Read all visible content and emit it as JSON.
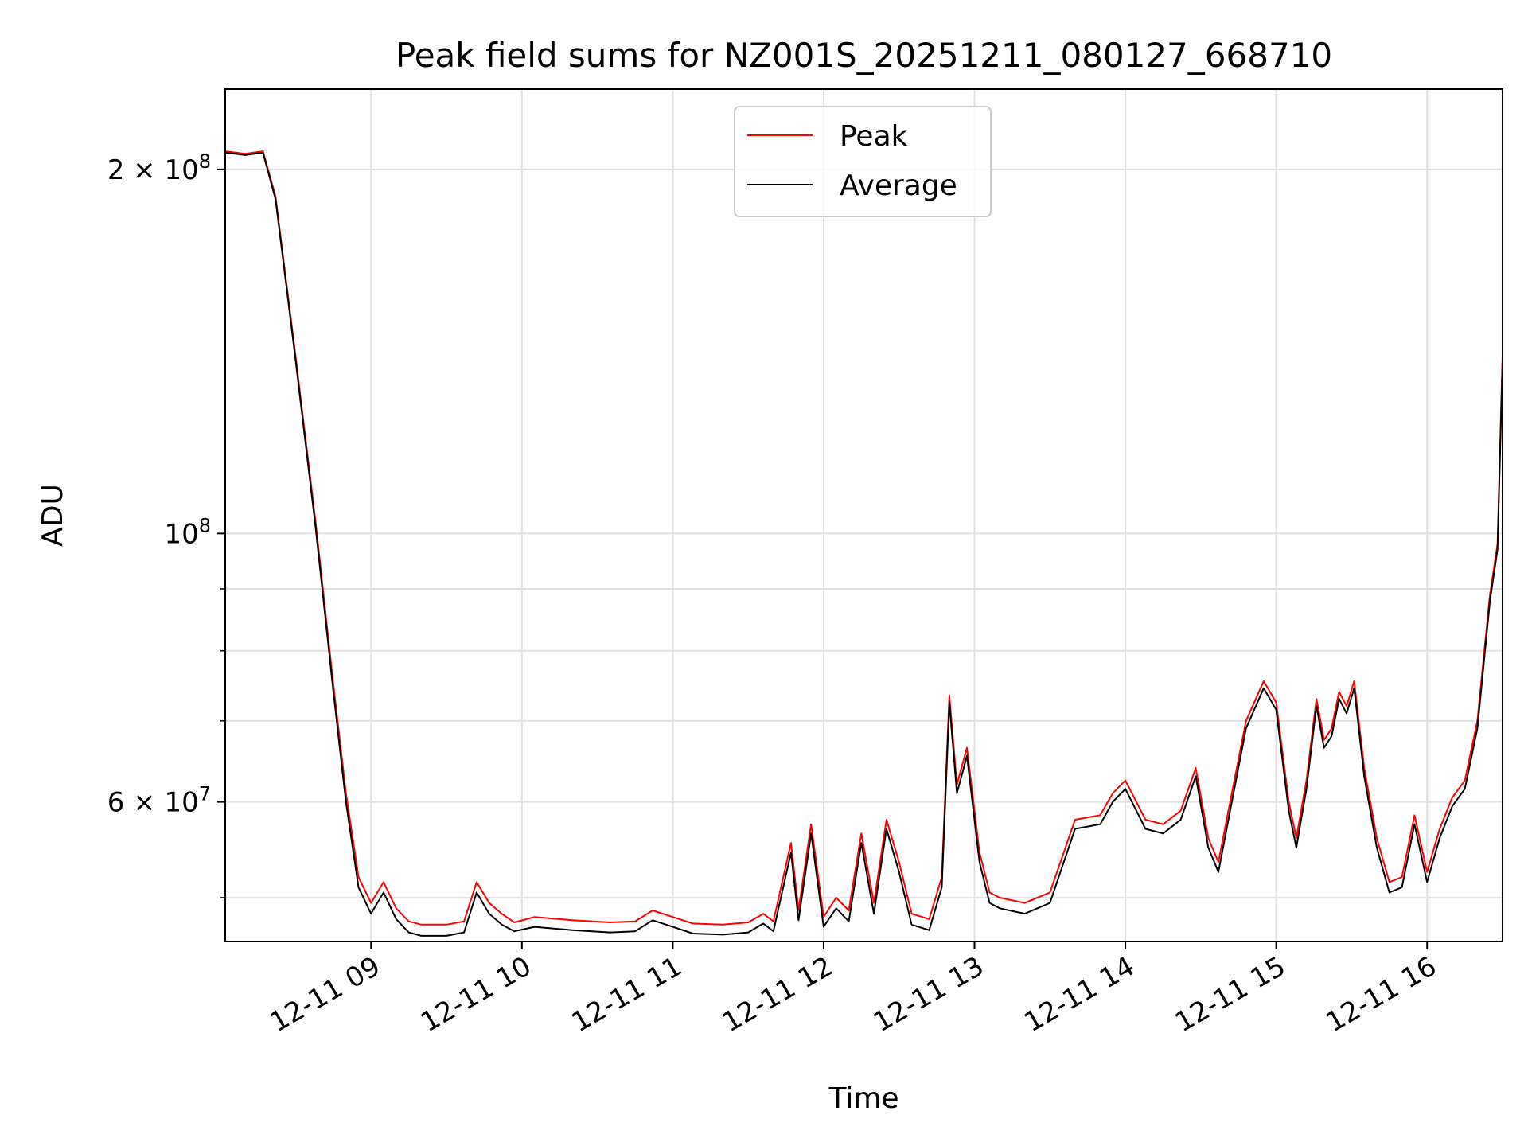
{
  "chart_data": {
    "type": "line",
    "title": "Peak field sums for NZ001S_20251211_080127_668710",
    "xlabel": "Time",
    "ylabel": "ADU",
    "x_range": [
      "2025-12-11 08:02",
      "2025-12-11 16:30"
    ],
    "y_range": [
      46000000,
      233000000
    ],
    "y_scale": "log",
    "grid": true,
    "legend_position": "upper center",
    "x_ticks": [
      {
        "value": "2025-12-11 09:00",
        "label": "12-11 09"
      },
      {
        "value": "2025-12-11 10:00",
        "label": "12-11 10"
      },
      {
        "value": "2025-12-11 11:00",
        "label": "12-11 11"
      },
      {
        "value": "2025-12-11 12:00",
        "label": "12-11 12"
      },
      {
        "value": "2025-12-11 13:00",
        "label": "12-11 13"
      },
      {
        "value": "2025-12-11 14:00",
        "label": "12-11 14"
      },
      {
        "value": "2025-12-11 15:00",
        "label": "12-11 15"
      },
      {
        "value": "2025-12-11 16:00",
        "label": "12-11 16"
      }
    ],
    "y_ticks_major": [
      {
        "value": 60000000,
        "label": "6 × 10",
        "exp": "7"
      },
      {
        "value": 100000000,
        "label": "10",
        "exp": "8"
      },
      {
        "value": 200000000,
        "label": "2 × 10",
        "exp": "8"
      }
    ],
    "y_ticks_minor": [
      50000000,
      70000000,
      80000000,
      90000000
    ],
    "series": [
      {
        "name": "Peak",
        "color": "#ff0000",
        "points": [
          [
            "2025-12-11 08:02",
            207000000
          ],
          [
            "2025-12-11 08:10",
            206000000
          ],
          [
            "2025-12-11 08:17",
            207000000
          ],
          [
            "2025-12-11 08:22",
            190000000
          ],
          [
            "2025-12-11 08:30",
            140000000
          ],
          [
            "2025-12-11 08:38",
            102000000
          ],
          [
            "2025-12-11 08:45",
            75000000
          ],
          [
            "2025-12-11 08:50",
            61000000
          ],
          [
            "2025-12-11 08:55",
            52000000
          ],
          [
            "2025-12-11 09:00",
            49500000
          ],
          [
            "2025-12-11 09:05",
            51500000
          ],
          [
            "2025-12-11 09:10",
            49000000
          ],
          [
            "2025-12-11 09:15",
            47800000
          ],
          [
            "2025-12-11 09:20",
            47500000
          ],
          [
            "2025-12-11 09:30",
            47500000
          ],
          [
            "2025-12-11 09:37",
            47800000
          ],
          [
            "2025-12-11 09:42",
            51500000
          ],
          [
            "2025-12-11 09:47",
            49500000
          ],
          [
            "2025-12-11 09:52",
            48500000
          ],
          [
            "2025-12-11 09:57",
            47700000
          ],
          [
            "2025-12-11 10:05",
            48200000
          ],
          [
            "2025-12-11 10:20",
            47900000
          ],
          [
            "2025-12-11 10:35",
            47700000
          ],
          [
            "2025-12-11 10:45",
            47800000
          ],
          [
            "2025-12-11 10:52",
            48800000
          ],
          [
            "2025-12-11 11:00",
            48200000
          ],
          [
            "2025-12-11 11:08",
            47600000
          ],
          [
            "2025-12-11 11:20",
            47500000
          ],
          [
            "2025-12-11 11:30",
            47700000
          ],
          [
            "2025-12-11 11:36",
            48500000
          ],
          [
            "2025-12-11 11:40",
            47800000
          ],
          [
            "2025-12-11 11:47",
            55500000
          ],
          [
            "2025-12-11 11:50",
            48800000
          ],
          [
            "2025-12-11 11:55",
            57500000
          ],
          [
            "2025-12-11 12:00",
            48200000
          ],
          [
            "2025-12-11 12:05",
            50000000
          ],
          [
            "2025-12-11 12:10",
            48800000
          ],
          [
            "2025-12-11 12:15",
            56500000
          ],
          [
            "2025-12-11 12:20",
            49500000
          ],
          [
            "2025-12-11 12:25",
            58000000
          ],
          [
            "2025-12-11 12:30",
            53500000
          ],
          [
            "2025-12-11 12:35",
            48500000
          ],
          [
            "2025-12-11 12:42",
            48000000
          ],
          [
            "2025-12-11 12:47",
            52000000
          ],
          [
            "2025-12-11 12:50",
            73500000
          ],
          [
            "2025-12-11 12:53",
            62000000
          ],
          [
            "2025-12-11 12:57",
            66500000
          ],
          [
            "2025-12-11 13:02",
            54500000
          ],
          [
            "2025-12-11 13:06",
            50500000
          ],
          [
            "2025-12-11 13:10",
            50000000
          ],
          [
            "2025-12-11 13:20",
            49500000
          ],
          [
            "2025-12-11 13:30",
            50500000
          ],
          [
            "2025-12-11 13:40",
            58000000
          ],
          [
            "2025-12-11 13:50",
            58500000
          ],
          [
            "2025-12-11 13:55",
            61000000
          ],
          [
            "2025-12-11 14:00",
            62500000
          ],
          [
            "2025-12-11 14:08",
            58000000
          ],
          [
            "2025-12-11 14:15",
            57500000
          ],
          [
            "2025-12-11 14:22",
            59000000
          ],
          [
            "2025-12-11 14:28",
            64000000
          ],
          [
            "2025-12-11 14:33",
            56000000
          ],
          [
            "2025-12-11 14:37",
            53500000
          ],
          [
            "2025-12-11 14:42",
            60500000
          ],
          [
            "2025-12-11 14:48",
            70000000
          ],
          [
            "2025-12-11 14:55",
            75500000
          ],
          [
            "2025-12-11 15:00",
            72500000
          ],
          [
            "2025-12-11 15:05",
            60000000
          ],
          [
            "2025-12-11 15:08",
            56000000
          ],
          [
            "2025-12-11 15:12",
            62500000
          ],
          [
            "2025-12-11 15:16",
            73000000
          ],
          [
            "2025-12-11 15:19",
            67500000
          ],
          [
            "2025-12-11 15:22",
            69000000
          ],
          [
            "2025-12-11 15:25",
            74000000
          ],
          [
            "2025-12-11 15:28",
            72000000
          ],
          [
            "2025-12-11 15:31",
            75500000
          ],
          [
            "2025-12-11 15:35",
            64000000
          ],
          [
            "2025-12-11 15:40",
            56000000
          ],
          [
            "2025-12-11 15:45",
            51500000
          ],
          [
            "2025-12-11 15:50",
            52000000
          ],
          [
            "2025-12-11 15:55",
            58500000
          ],
          [
            "2025-12-11 16:00",
            52500000
          ],
          [
            "2025-12-11 16:05",
            57000000
          ],
          [
            "2025-12-11 16:10",
            60500000
          ],
          [
            "2025-12-11 16:15",
            62500000
          ],
          [
            "2025-12-11 16:20",
            70000000
          ],
          [
            "2025-12-11 16:25",
            89000000
          ],
          [
            "2025-12-11 16:28",
            98000000
          ],
          [
            "2025-12-11 16:30",
            140000000
          ]
        ]
      },
      {
        "name": "Average",
        "color": "#000000",
        "points": [
          [
            "2025-12-11 08:02",
            206500000
          ],
          [
            "2025-12-11 08:10",
            205500000
          ],
          [
            "2025-12-11 08:17",
            206500000
          ],
          [
            "2025-12-11 08:22",
            189000000
          ],
          [
            "2025-12-11 08:30",
            139000000
          ],
          [
            "2025-12-11 08:38",
            101000000
          ],
          [
            "2025-12-11 08:45",
            74000000
          ],
          [
            "2025-12-11 08:50",
            60000000
          ],
          [
            "2025-12-11 08:55",
            51000000
          ],
          [
            "2025-12-11 09:00",
            48500000
          ],
          [
            "2025-12-11 09:05",
            50500000
          ],
          [
            "2025-12-11 09:10",
            48000000
          ],
          [
            "2025-12-11 09:15",
            46800000
          ],
          [
            "2025-12-11 09:20",
            46500000
          ],
          [
            "2025-12-11 09:30",
            46500000
          ],
          [
            "2025-12-11 09:37",
            46800000
          ],
          [
            "2025-12-11 09:42",
            50500000
          ],
          [
            "2025-12-11 09:47",
            48500000
          ],
          [
            "2025-12-11 09:52",
            47500000
          ],
          [
            "2025-12-11 09:57",
            46900000
          ],
          [
            "2025-12-11 10:05",
            47300000
          ],
          [
            "2025-12-11 10:20",
            47000000
          ],
          [
            "2025-12-11 10:35",
            46800000
          ],
          [
            "2025-12-11 10:45",
            46900000
          ],
          [
            "2025-12-11 10:52",
            47900000
          ],
          [
            "2025-12-11 11:00",
            47300000
          ],
          [
            "2025-12-11 11:08",
            46700000
          ],
          [
            "2025-12-11 11:20",
            46600000
          ],
          [
            "2025-12-11 11:30",
            46800000
          ],
          [
            "2025-12-11 11:36",
            47600000
          ],
          [
            "2025-12-11 11:40",
            46900000
          ],
          [
            "2025-12-11 11:47",
            54500000
          ],
          [
            "2025-12-11 11:50",
            47900000
          ],
          [
            "2025-12-11 11:55",
            56500000
          ],
          [
            "2025-12-11 12:00",
            47300000
          ],
          [
            "2025-12-11 12:05",
            49000000
          ],
          [
            "2025-12-11 12:10",
            47800000
          ],
          [
            "2025-12-11 12:15",
            55500000
          ],
          [
            "2025-12-11 12:20",
            48500000
          ],
          [
            "2025-12-11 12:25",
            57000000
          ],
          [
            "2025-12-11 12:30",
            52500000
          ],
          [
            "2025-12-11 12:35",
            47500000
          ],
          [
            "2025-12-11 12:42",
            47000000
          ],
          [
            "2025-12-11 12:47",
            51000000
          ],
          [
            "2025-12-11 12:50",
            72500000
          ],
          [
            "2025-12-11 12:53",
            61000000
          ],
          [
            "2025-12-11 12:57",
            65500000
          ],
          [
            "2025-12-11 13:02",
            53500000
          ],
          [
            "2025-12-11 13:06",
            49500000
          ],
          [
            "2025-12-11 13:10",
            49000000
          ],
          [
            "2025-12-11 13:20",
            48500000
          ],
          [
            "2025-12-11 13:30",
            49500000
          ],
          [
            "2025-12-11 13:40",
            57000000
          ],
          [
            "2025-12-11 13:50",
            57500000
          ],
          [
            "2025-12-11 13:55",
            60000000
          ],
          [
            "2025-12-11 14:00",
            61500000
          ],
          [
            "2025-12-11 14:08",
            57000000
          ],
          [
            "2025-12-11 14:15",
            56500000
          ],
          [
            "2025-12-11 14:22",
            58000000
          ],
          [
            "2025-12-11 14:28",
            63000000
          ],
          [
            "2025-12-11 14:33",
            55000000
          ],
          [
            "2025-12-11 14:37",
            52500000
          ],
          [
            "2025-12-11 14:42",
            59500000
          ],
          [
            "2025-12-11 14:48",
            69000000
          ],
          [
            "2025-12-11 14:55",
            74500000
          ],
          [
            "2025-12-11 15:00",
            71500000
          ],
          [
            "2025-12-11 15:05",
            59000000
          ],
          [
            "2025-12-11 15:08",
            55000000
          ],
          [
            "2025-12-11 15:12",
            61500000
          ],
          [
            "2025-12-11 15:16",
            72000000
          ],
          [
            "2025-12-11 15:19",
            66500000
          ],
          [
            "2025-12-11 15:22",
            68000000
          ],
          [
            "2025-12-11 15:25",
            73000000
          ],
          [
            "2025-12-11 15:28",
            71000000
          ],
          [
            "2025-12-11 15:31",
            74500000
          ],
          [
            "2025-12-11 15:35",
            63000000
          ],
          [
            "2025-12-11 15:40",
            55000000
          ],
          [
            "2025-12-11 15:45",
            50500000
          ],
          [
            "2025-12-11 15:50",
            51000000
          ],
          [
            "2025-12-11 15:55",
            57500000
          ],
          [
            "2025-12-11 16:00",
            51500000
          ],
          [
            "2025-12-11 16:05",
            56000000
          ],
          [
            "2025-12-11 16:10",
            59500000
          ],
          [
            "2025-12-11 16:15",
            61500000
          ],
          [
            "2025-12-11 16:20",
            69000000
          ],
          [
            "2025-12-11 16:25",
            88000000
          ],
          [
            "2025-12-11 16:28",
            97000000
          ],
          [
            "2025-12-11 16:30",
            139000000
          ]
        ]
      }
    ]
  }
}
